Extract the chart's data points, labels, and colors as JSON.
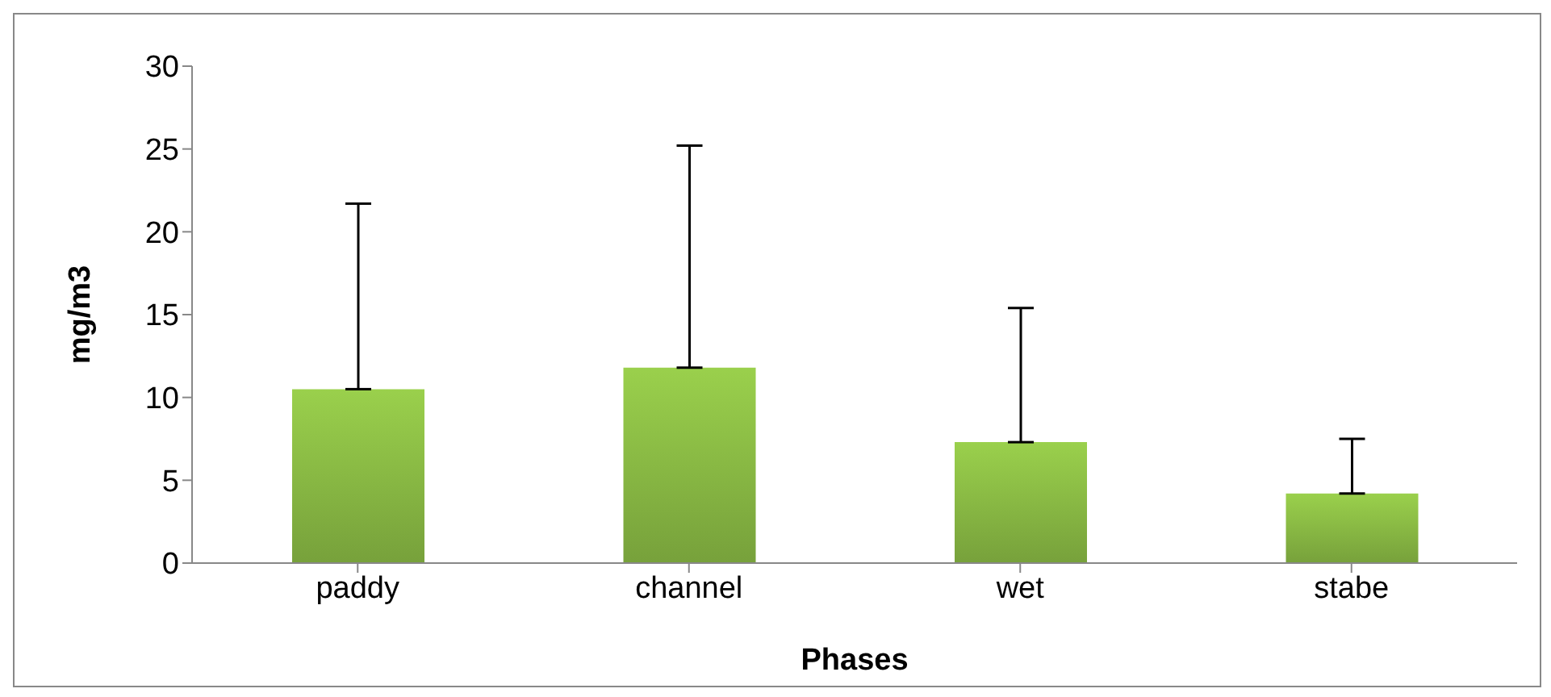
{
  "chart_data": {
    "type": "bar",
    "xlabel": "Phases",
    "ylabel": "mg/m3",
    "categories": [
      "paddy",
      "channel",
      "wet",
      "stabe"
    ],
    "values": [
      10.5,
      11.8,
      7.3,
      4.2
    ],
    "errors": [
      [
        10.5,
        21.7
      ],
      [
        11.8,
        25.2
      ],
      [
        7.3,
        15.4
      ],
      [
        4.2,
        7.5
      ]
    ],
    "color": "#8cbd45",
    "ylim": [
      0,
      30
    ],
    "yticks": [
      0,
      5,
      10,
      15,
      20,
      25,
      30
    ]
  }
}
